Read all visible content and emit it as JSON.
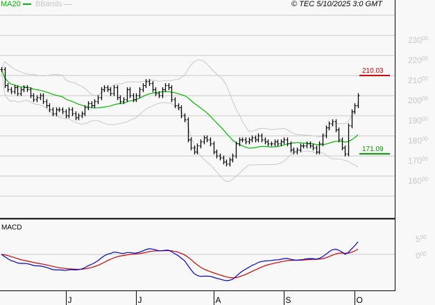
{
  "header": {
    "legend": [
      {
        "label": "MA20",
        "color": "#00bb00"
      },
      {
        "label": "BBands",
        "color": "#c8c8c8"
      }
    ],
    "copyright": "© TEC 5/10/2025 3:0 GMT"
  },
  "chart_data": [
    {
      "type": "ohlc",
      "pane": "price",
      "ylim": [
        145,
        245
      ],
      "yticks": [
        {
          "value": 230,
          "label": "230",
          "sup": "00"
        },
        {
          "value": 220,
          "label": "220",
          "sup": "00"
        },
        {
          "value": 210,
          "label": "210",
          "sup": "00"
        },
        {
          "value": 200,
          "label": "200",
          "sup": "00"
        },
        {
          "value": 190,
          "label": "190",
          "sup": "00"
        },
        {
          "value": 180,
          "label": "180",
          "sup": "00"
        },
        {
          "value": 170,
          "label": "170",
          "sup": "00"
        },
        {
          "value": 160,
          "label": "160",
          "sup": "00"
        }
      ],
      "grid": true,
      "close": [
        213,
        205,
        203,
        202,
        204,
        201,
        203,
        204,
        203,
        200,
        198,
        199,
        200,
        197,
        195,
        193,
        191,
        193,
        193,
        192,
        190,
        193,
        191,
        189,
        190,
        191,
        194,
        196,
        195,
        197,
        199,
        203,
        204,
        203,
        201,
        204,
        199,
        197,
        198,
        203,
        200,
        198,
        200,
        203,
        205,
        207,
        206,
        203,
        201,
        200,
        203,
        205,
        204,
        198,
        195,
        194,
        190,
        188,
        178,
        174,
        172,
        175,
        177,
        179,
        178,
        176,
        172,
        170,
        169,
        167,
        166,
        168,
        170,
        176,
        178,
        178,
        177,
        178,
        179,
        178,
        180,
        178,
        177,
        176,
        176,
        177,
        176,
        177,
        178,
        176,
        173,
        172,
        173,
        175,
        175,
        176,
        175,
        174,
        172,
        176,
        180,
        184,
        186,
        187,
        183,
        178,
        174,
        171,
        185,
        192,
        195,
        200
      ],
      "indicators": [
        "MA20",
        "BBands"
      ],
      "markers": [
        {
          "label": "210.03",
          "value": 210.03,
          "color": "#cc0000"
        },
        {
          "label": "171.09",
          "value": 171.09,
          "color": "#009900"
        }
      ],
      "colors": {
        "bars": "#000000",
        "ma20": "#00bb00",
        "bbands": "#c8c8c8"
      }
    },
    {
      "type": "line",
      "pane": "macd",
      "title": "MACD",
      "ylim": [
        -11,
        10.5
      ],
      "yticks": [
        {
          "value": 5,
          "label": "5",
          "sup": "00"
        },
        {
          "value": 0,
          "label": "0",
          "sup": "00"
        }
      ],
      "series_colors": {
        "macd": "#0000cc",
        "signal": "#cc0000"
      }
    }
  ],
  "xaxis": {
    "months": [
      {
        "label": "J",
        "index": 20
      },
      {
        "label": "J",
        "index": 42
      },
      {
        "label": "A",
        "index": 66
      },
      {
        "label": "S",
        "index": 88
      },
      {
        "label": "O",
        "index": 110
      }
    ]
  }
}
